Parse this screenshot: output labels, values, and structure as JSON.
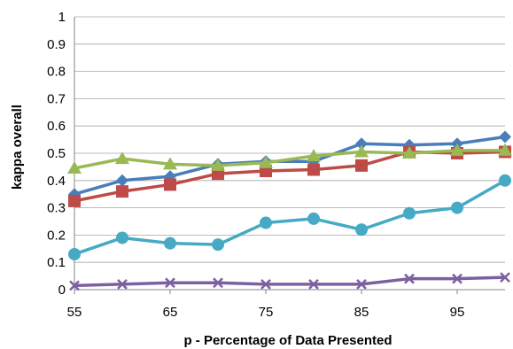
{
  "chart_data": {
    "type": "line",
    "title": "",
    "xlabel": "p - Percentage of Data Presented",
    "ylabel": "kappa overall",
    "xlim": [
      55,
      100
    ],
    "ylim": [
      0,
      1
    ],
    "x_ticks": [
      "55",
      "65",
      "75",
      "85",
      "95"
    ],
    "y_ticks": [
      "0",
      "0.1",
      "0.2",
      "0.3",
      "0.4",
      "0.5",
      "0.6",
      "0.7",
      "0.8",
      "0.9",
      "1"
    ],
    "grid": "horizontal",
    "x": [
      55,
      60,
      65,
      70,
      75,
      80,
      85,
      90,
      95,
      100
    ],
    "series": [
      {
        "marker": "diamond",
        "color": "#4a7ebb",
        "values": [
          0.35,
          0.4,
          0.415,
          0.46,
          0.47,
          0.47,
          0.535,
          0.53,
          0.535,
          0.56
        ]
      },
      {
        "marker": "square",
        "color": "#be4b48",
        "values": [
          0.325,
          0.36,
          0.385,
          0.425,
          0.435,
          0.44,
          0.455,
          0.505,
          0.5,
          0.505
        ]
      },
      {
        "marker": "triangle",
        "color": "#98b954",
        "values": [
          0.445,
          0.48,
          0.46,
          0.455,
          0.465,
          0.49,
          0.505,
          0.5,
          0.51,
          0.51
        ]
      },
      {
        "marker": "cross",
        "color": "#7d60a0",
        "values": [
          0.015,
          0.02,
          0.025,
          0.025,
          0.02,
          0.02,
          0.02,
          0.04,
          0.04,
          0.045
        ]
      },
      {
        "marker": "circle",
        "color": "#46aac5",
        "values": [
          0.13,
          0.19,
          0.17,
          0.165,
          0.245,
          0.26,
          0.22,
          0.28,
          0.3,
          0.4
        ]
      }
    ]
  }
}
